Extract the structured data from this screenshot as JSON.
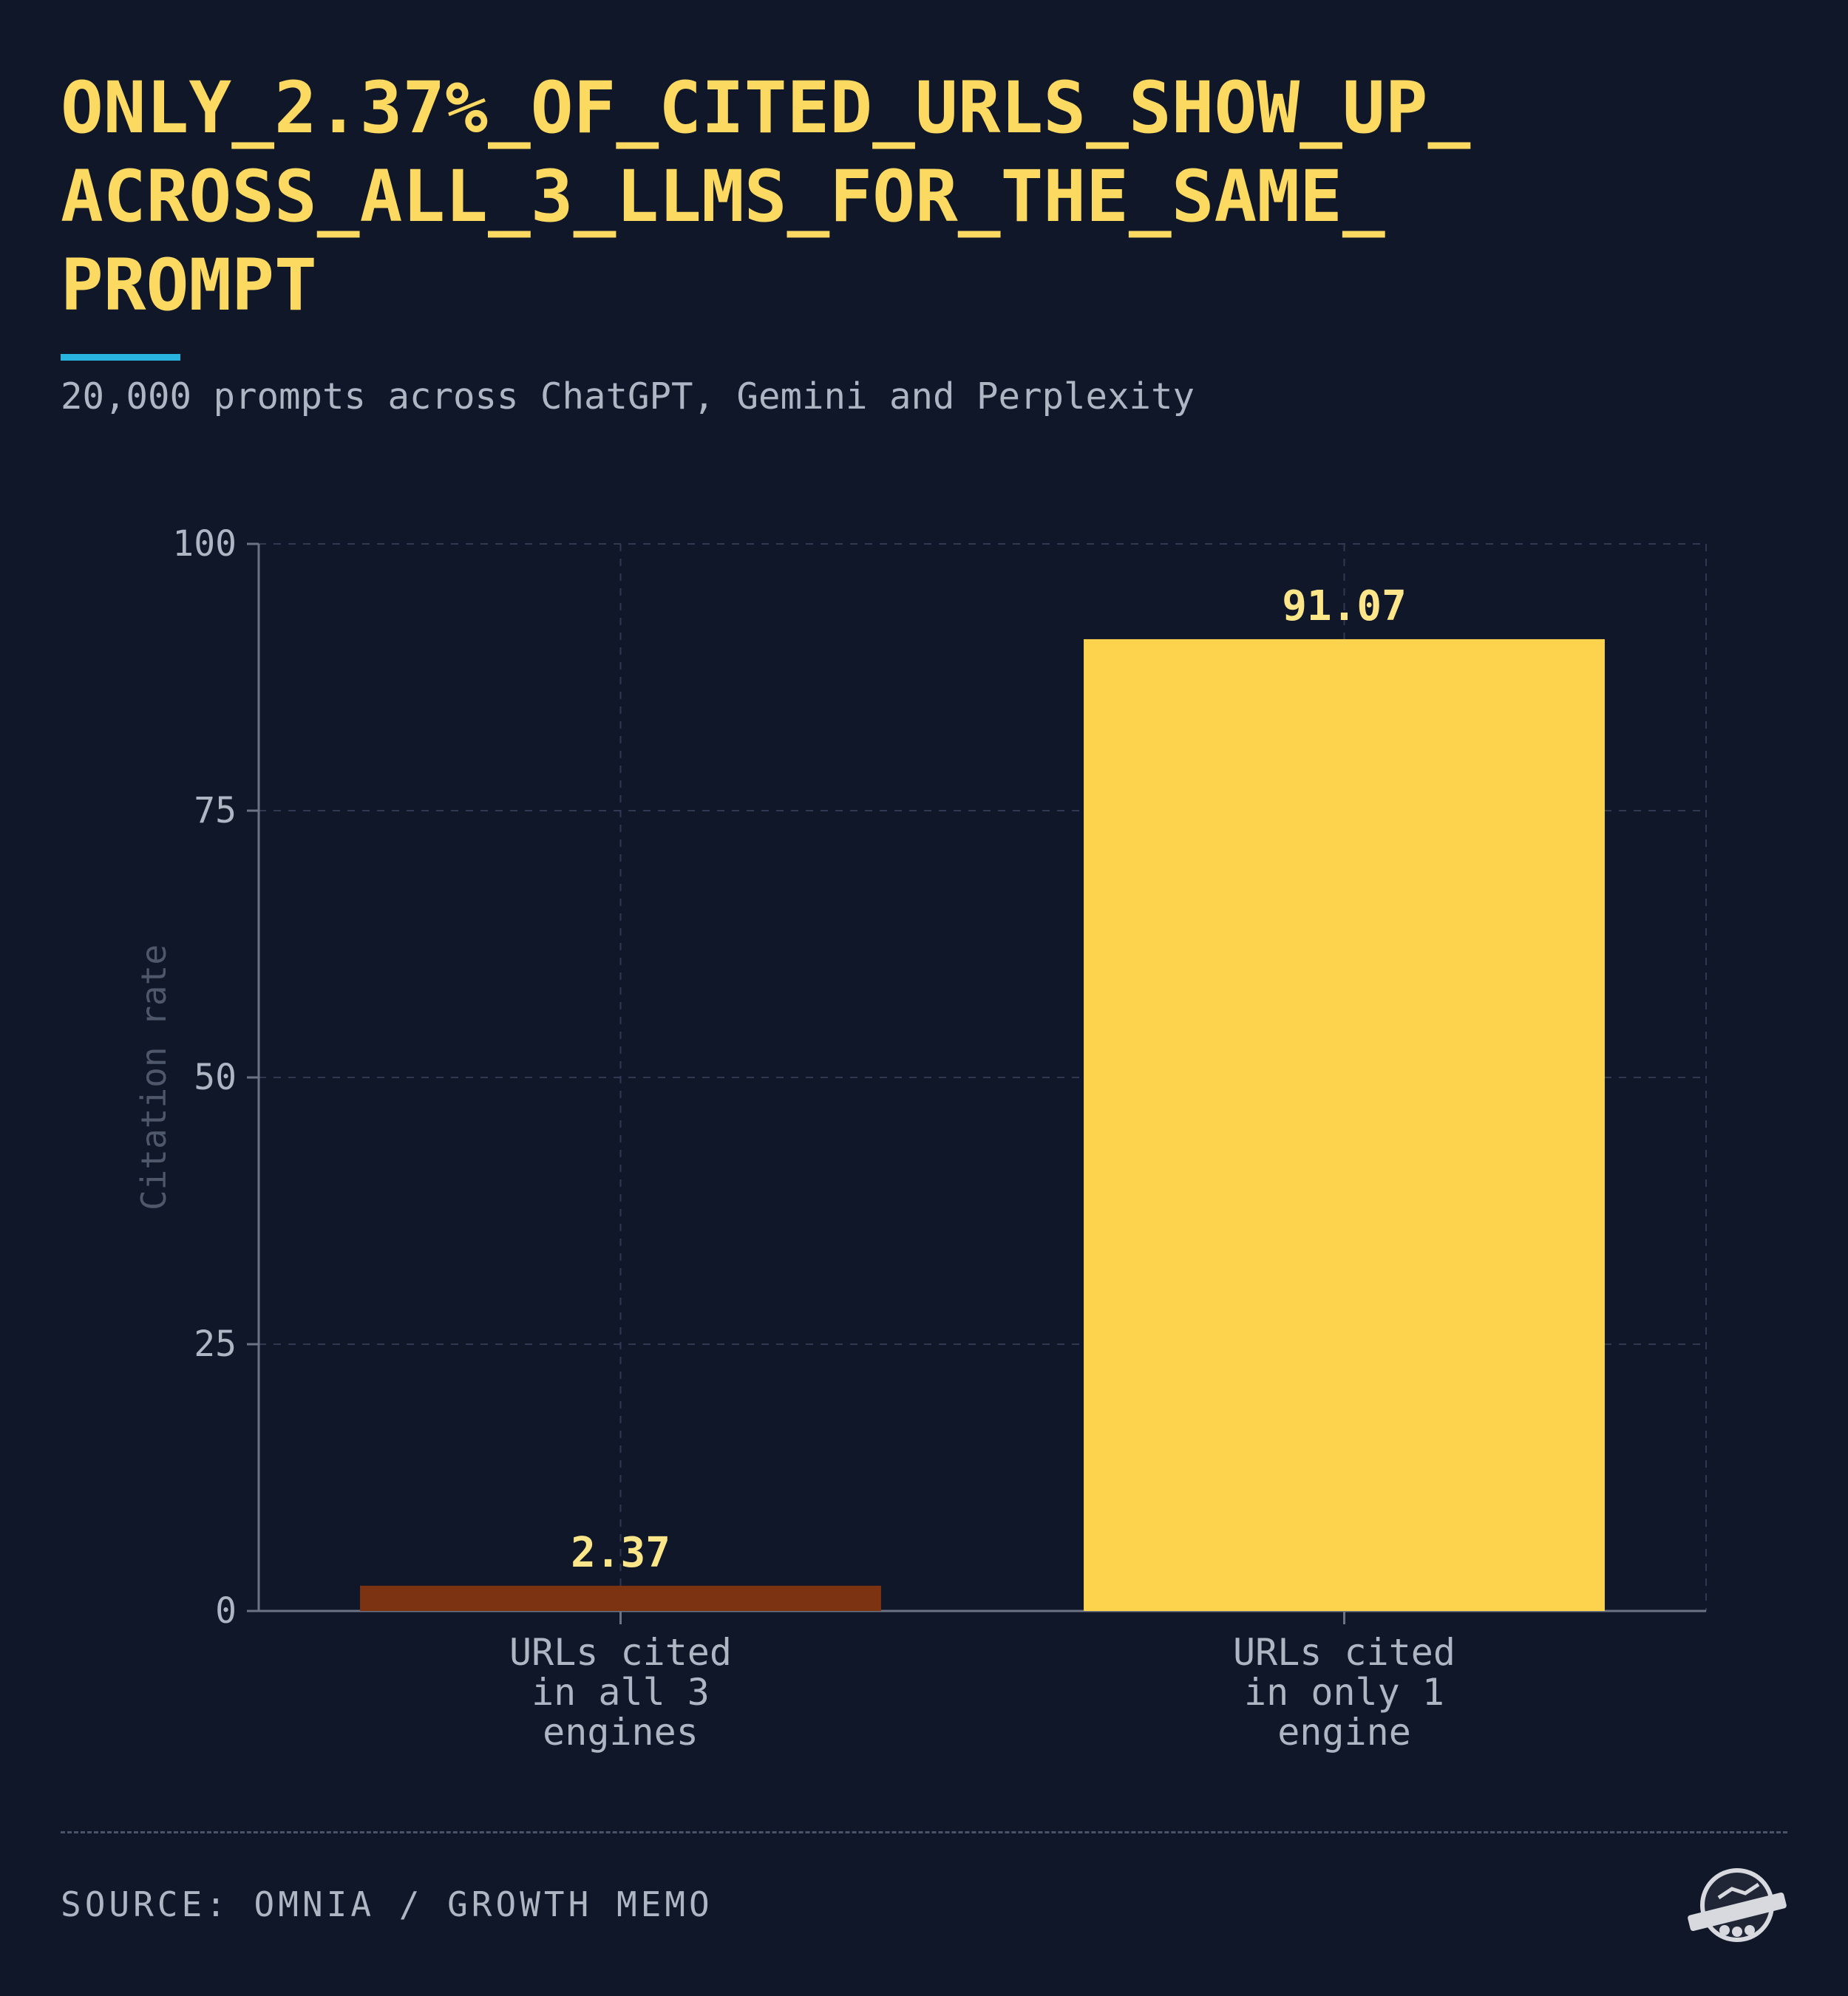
{
  "header": {
    "title_lines": [
      "ONLY_2.37%_OF_CITED_URLS_SHOW_UP_",
      "ACROSS_ALL_3_LLMS_FOR_THE_SAME_",
      "PROMPT"
    ],
    "subtitle": "20,000 prompts across ChatGPT, Gemini and Perplexity"
  },
  "footer": {
    "source": "SOURCE: OMNIA / GROWTH MEMO",
    "logo_icon": "growth-memo-logo-icon"
  },
  "colors": {
    "background": "#0f1729",
    "title": "#fcd961",
    "accent_rule": "#29b4df",
    "bar_low": "#7c3312",
    "bar_high": "#fdd34d",
    "value_label": "#fde68a",
    "axis_text": "#aeb6c4"
  },
  "chart_data": {
    "type": "bar",
    "categories": [
      [
        "URLs cited",
        "in all 3",
        "engines"
      ],
      [
        "URLs cited",
        "in only 1",
        "engine"
      ]
    ],
    "values": [
      2.37,
      91.07
    ],
    "value_labels": [
      "2.37",
      "91.07"
    ],
    "bar_colors": [
      "#7c3312",
      "#fdd34d"
    ],
    "ylabel": "Citation rate",
    "ylim": [
      0,
      100
    ],
    "yticks": [
      0,
      25,
      50,
      75,
      100
    ],
    "grid": true
  }
}
